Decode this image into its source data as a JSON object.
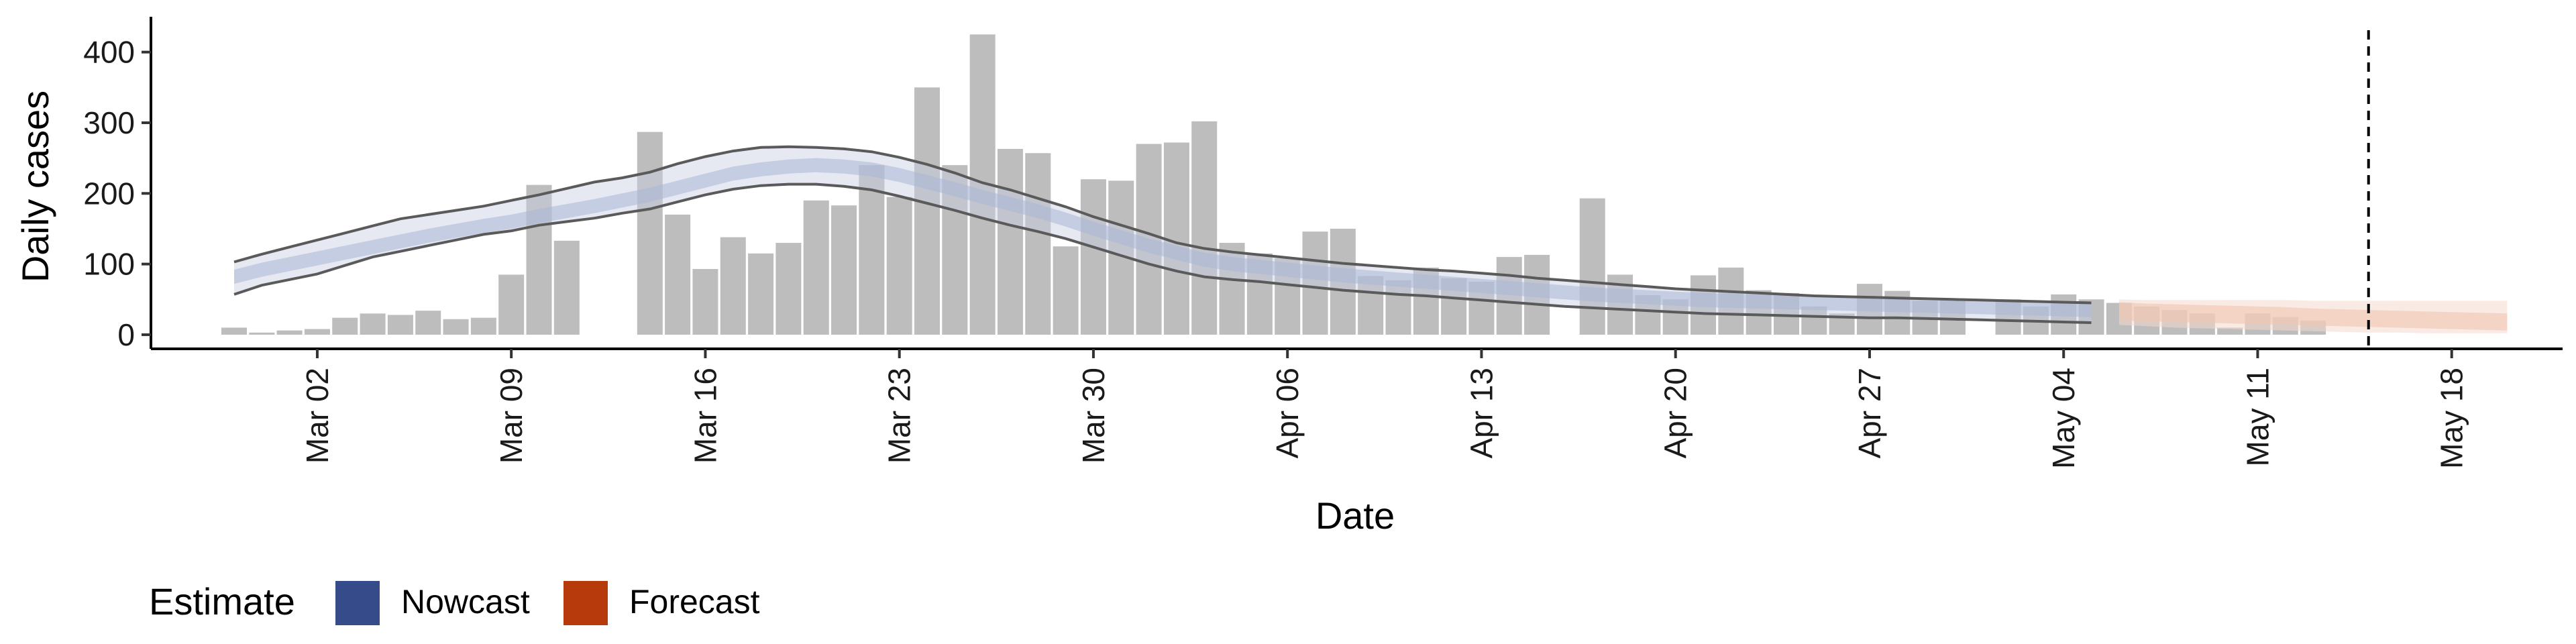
{
  "chart_data": {
    "type": "bar",
    "xlabel": "Date",
    "ylabel": "Daily cases",
    "ylim": [
      -20,
      450
    ],
    "yticks": [
      0,
      100,
      200,
      300,
      400
    ],
    "x_range": [
      "2020-02-25",
      "2020-05-22"
    ],
    "xtick_dates": [
      "2020-03-02",
      "2020-03-09",
      "2020-03-16",
      "2020-03-23",
      "2020-03-30",
      "2020-04-06",
      "2020-04-13",
      "2020-04-20",
      "2020-04-27",
      "2020-05-04",
      "2020-05-11",
      "2020-05-18"
    ],
    "xtick_labels": [
      "Mar 02",
      "Mar 09",
      "Mar 16",
      "Mar 23",
      "Mar 30",
      "Apr 06",
      "Apr 13",
      "Apr 20",
      "Apr 27",
      "May 04",
      "May 11",
      "May 18"
    ],
    "grid": false,
    "bars": {
      "name": "Daily cases",
      "color": "#bdbdbd",
      "start_date": "2020-02-28",
      "values": [
        10,
        3,
        6,
        8,
        24,
        30,
        28,
        34,
        22,
        24,
        85,
        212,
        133,
        0,
        0,
        287,
        170,
        93,
        138,
        115,
        130,
        190,
        183,
        240,
        195,
        350,
        240,
        425,
        263,
        257,
        125,
        220,
        218,
        270,
        272,
        302,
        130,
        115,
        108,
        146,
        150,
        83,
        77,
        95,
        80,
        75,
        110,
        113,
        0,
        193,
        85,
        56,
        50,
        84,
        95,
        63,
        59,
        40,
        30,
        72,
        62,
        48,
        50,
        0,
        50,
        40,
        57,
        50,
        45,
        40,
        35,
        30,
        10,
        30,
        25,
        20
      ]
    },
    "forecast_start_index": 68,
    "vline_date": "2020-05-15",
    "estimate": {
      "start_date": "2020-02-28",
      "nowcast_end_index": 67,
      "median": [
        82,
        92,
        100,
        108,
        116,
        124,
        132,
        140,
        147,
        154,
        160,
        168,
        175,
        182,
        190,
        198,
        208,
        218,
        228,
        234,
        238,
        240,
        238,
        234,
        226,
        216,
        206,
        195,
        185,
        175,
        163,
        150,
        138,
        126,
        116,
        106,
        100,
        96,
        92,
        88,
        84,
        81,
        78,
        75,
        72,
        69,
        66,
        63,
        60,
        57,
        55,
        53,
        51,
        49,
        48,
        47,
        46,
        45,
        44,
        43,
        42,
        41,
        40,
        39,
        38,
        37,
        36,
        35,
        33,
        31,
        30,
        29,
        28,
        27,
        26,
        24,
        23,
        22,
        21,
        20,
        19,
        18,
        17
      ],
      "mid_lower": [
        72,
        82,
        90,
        98,
        106,
        114,
        122,
        130,
        137,
        144,
        150,
        158,
        165,
        172,
        180,
        188,
        198,
        208,
        218,
        224,
        228,
        230,
        228,
        224,
        216,
        206,
        196,
        185,
        175,
        165,
        153,
        140,
        128,
        116,
        106,
        96,
        90,
        86,
        82,
        78,
        74,
        71,
        68,
        65,
        62,
        59,
        56,
        53,
        50,
        47,
        45,
        43,
        41,
        39,
        38,
        37,
        36,
        35,
        34,
        33,
        32,
        31,
        30,
        29,
        28,
        27,
        26,
        25,
        20,
        19,
        18,
        17,
        16,
        15,
        14,
        13,
        12,
        11,
        10,
        9,
        8,
        7,
        6
      ],
      "mid_upper": [
        92,
        102,
        110,
        118,
        126,
        134,
        142,
        150,
        157,
        164,
        170,
        178,
        185,
        192,
        200,
        208,
        218,
        228,
        238,
        244,
        248,
        250,
        248,
        244,
        236,
        226,
        216,
        205,
        195,
        185,
        173,
        160,
        148,
        136,
        126,
        116,
        110,
        106,
        102,
        98,
        94,
        91,
        88,
        85,
        82,
        79,
        76,
        73,
        70,
        67,
        65,
        63,
        61,
        59,
        58,
        57,
        56,
        55,
        54,
        53,
        52,
        51,
        50,
        49,
        48,
        47,
        46,
        45,
        46,
        44,
        43,
        42,
        41,
        40,
        39,
        37,
        36,
        35,
        34,
        33,
        32,
        31,
        30
      ],
      "lower": [
        57,
        70,
        78,
        86,
        98,
        110,
        118,
        126,
        134,
        142,
        147,
        155,
        160,
        165,
        172,
        178,
        188,
        198,
        206,
        211,
        213,
        213,
        210,
        205,
        196,
        186,
        176,
        165,
        155,
        146,
        136,
        124,
        112,
        100,
        90,
        82,
        78,
        75,
        71,
        67,
        63,
        60,
        57,
        55,
        52,
        49,
        46,
        43,
        40,
        38,
        36,
        34,
        32,
        30,
        29,
        28,
        27,
        26,
        25,
        24,
        24,
        23,
        22,
        21,
        20,
        19,
        18,
        17,
        14,
        12,
        10,
        9,
        8,
        7,
        6,
        5,
        4,
        3,
        3,
        2,
        2,
        2,
        2
      ],
      "upper": [
        103,
        114,
        124,
        134,
        144,
        154,
        164,
        170,
        176,
        182,
        190,
        198,
        207,
        216,
        222,
        230,
        242,
        252,
        260,
        265,
        266,
        265,
        263,
        259,
        251,
        241,
        229,
        215,
        205,
        193,
        181,
        167,
        155,
        143,
        130,
        122,
        117,
        113,
        109,
        105,
        101,
        98,
        95,
        92,
        90,
        87,
        84,
        80,
        77,
        74,
        71,
        68,
        65,
        63,
        61,
        59,
        57,
        55,
        54,
        53,
        52,
        51,
        50,
        49,
        48,
        47,
        46,
        45,
        50,
        49,
        49,
        49,
        49,
        49,
        49,
        48,
        48,
        48,
        48,
        48,
        48,
        48,
        48
      ]
    },
    "legend": {
      "title": "Estimate",
      "position": "bottom-left",
      "items": [
        {
          "label": "Nowcast",
          "color": "#354B8A"
        },
        {
          "label": "Forecast",
          "color": "#B63A0B"
        }
      ]
    }
  }
}
